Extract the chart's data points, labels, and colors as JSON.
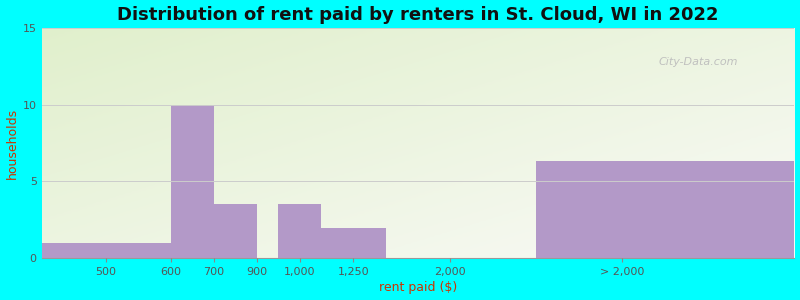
{
  "title": "Distribution of rent paid by renters in St. Cloud, WI in 2022",
  "xlabel": "rent paid ($)",
  "ylabel": "households",
  "tick_labels": [
    "500",
    "600",
    "700",
    "900",
    "1,000",
    "1,250",
    "2,000",
    "> 2,000"
  ],
  "bar_values": [
    1,
    10,
    3.5,
    0,
    3.5,
    2,
    0,
    6.3
  ],
  "bar_color": "#b399c8",
  "ylim": [
    0,
    15
  ],
  "yticks": [
    0,
    5,
    10,
    15
  ],
  "outer_bg": "#00ffff",
  "title_fontsize": 13,
  "axis_label_fontsize": 9,
  "axis_label_color": "#cc3300",
  "tick_fontsize": 8,
  "tick_color": "#555555",
  "title_color": "#111111",
  "watermark": "City-Data.com",
  "grid_color": "#cccccc"
}
